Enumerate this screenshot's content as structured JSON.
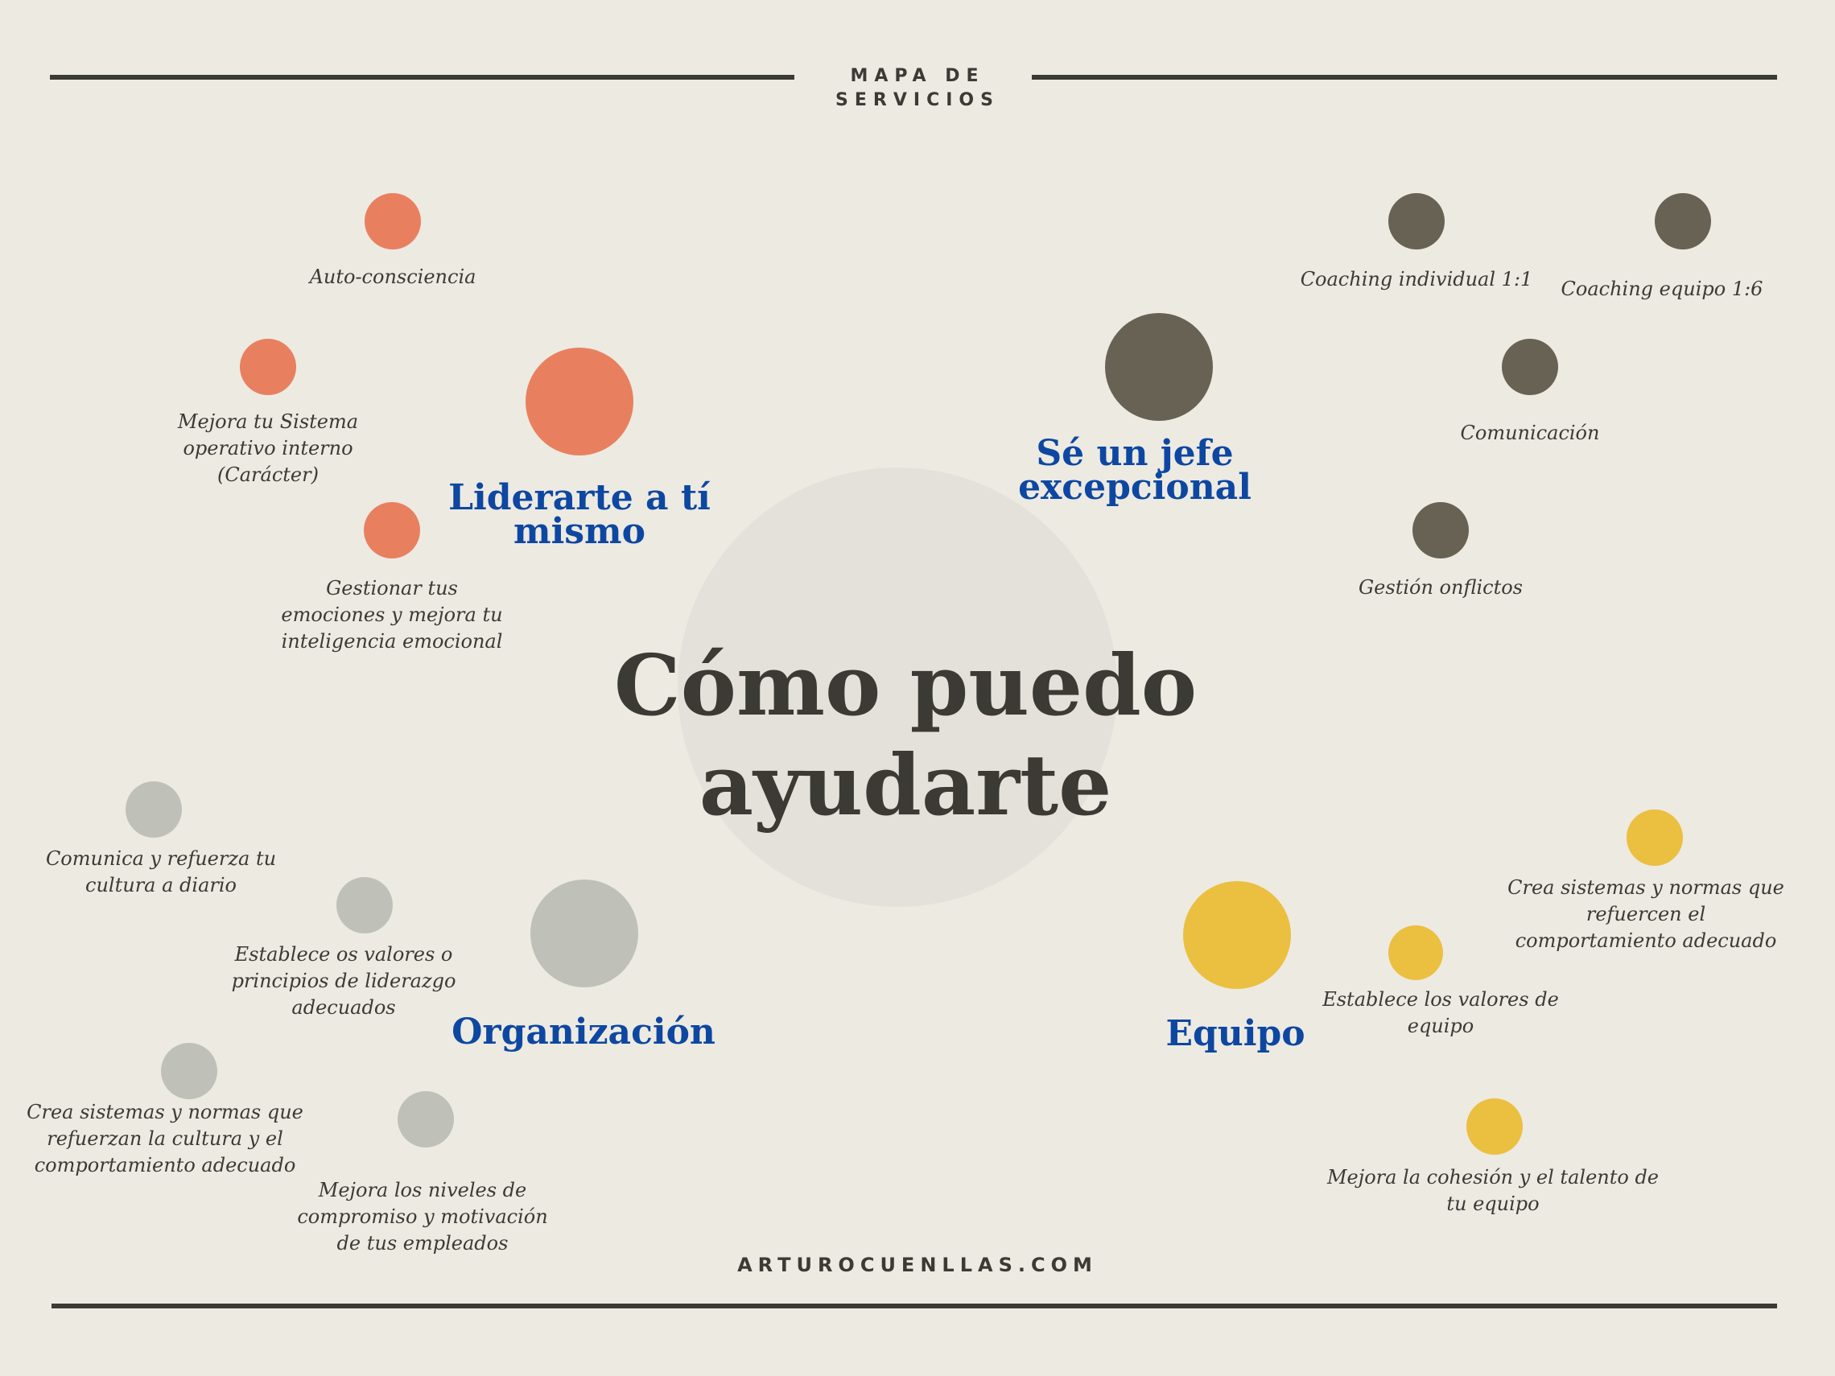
{
  "header": {
    "title": "MAPA DE\nSERVICIOS"
  },
  "center": {
    "title": "Cómo puedo\nayudarte"
  },
  "footer": {
    "site": "ARTUROCUENLLAS.COM"
  },
  "colors": {
    "background": "#edeae2",
    "lines": "#3b3a35",
    "center_circle": "#e4e1da",
    "liderarte": "#e8805f",
    "jefe": "#686255",
    "organizacion": "#bfc1b8",
    "equipo": "#ebbf40",
    "category_title": "#0d47a1"
  },
  "categories": {
    "liderarte": {
      "title": "Liderarte a tí\nmismo",
      "items": [
        "Auto-consciencia",
        "Mejora tu Sistema\noperativo interno\n(Carácter)",
        "Gestionar tus\nemociones y mejora tu\ninteligencia emocional"
      ]
    },
    "jefe": {
      "title": "Sé un jefe\nexcepcional",
      "items": [
        "Coaching individual 1:1",
        "Coaching equipo 1:6",
        "Comunicación",
        "Gestión onflictos"
      ]
    },
    "organizacion": {
      "title": "Organización",
      "items": [
        "Comunica y refuerza tu\ncultura  a diario",
        "Establece os valores o\nprincipios de liderazgo\nadecuados",
        "Crea sistemas y normas que\nrefuerzan la cultura y el\ncomportamiento adecuado",
        "Mejora los niveles de\ncompromiso y motivación\nde tus empleados"
      ]
    },
    "equipo": {
      "title": "Equipo",
      "items": [
        "Crea sistemas y normas que\nrefuercen el\ncomportamiento adecuado",
        "Establece  los valores de\nequipo",
        "Mejora la cohesión y el talento de\ntu equipo"
      ]
    }
  }
}
